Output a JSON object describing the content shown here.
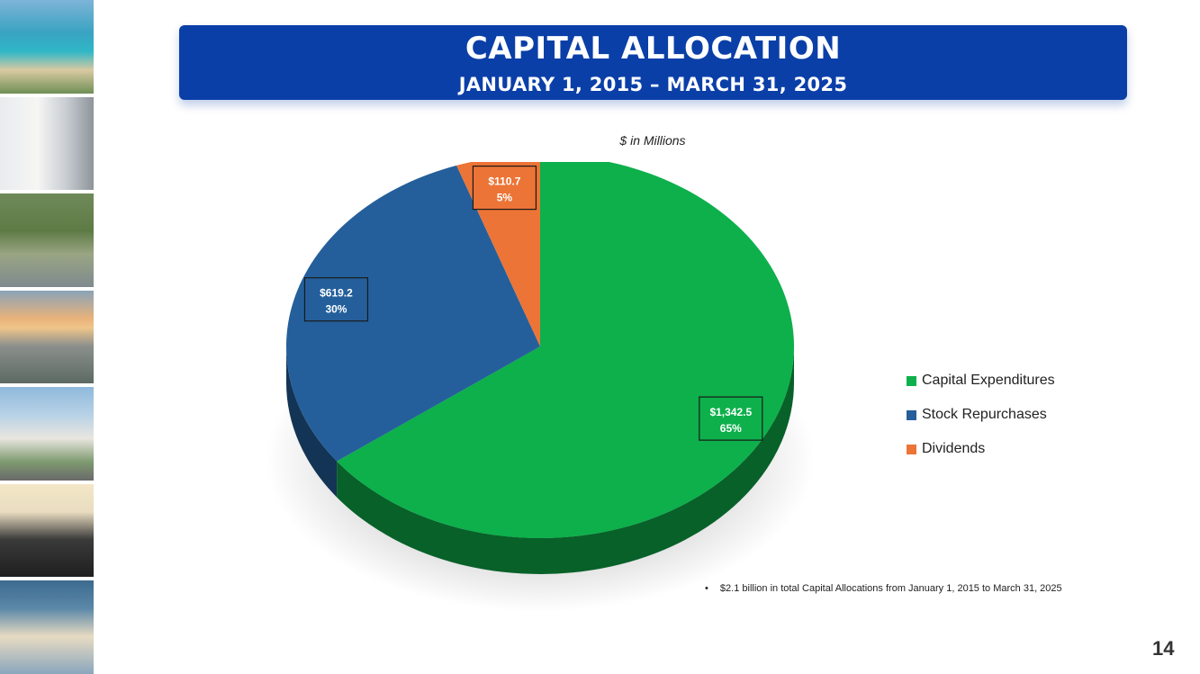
{
  "header": {
    "title": "CAPITAL ALLOCATION",
    "subtitle": "JANUARY 1, 2015 – MARCH 31, 2025"
  },
  "chart_data": {
    "type": "pie",
    "units_label": "$ in Millions",
    "slices": [
      {
        "name": "Capital Expenditures",
        "value": 1342.5,
        "value_label": "$1,342.5",
        "percent_label": "65%",
        "color": "#0db04b"
      },
      {
        "name": "Stock Repurchases",
        "value": 619.2,
        "value_label": "$619.2",
        "percent_label": "30%",
        "color": "#245f9b"
      },
      {
        "name": "Dividends",
        "value": 110.7,
        "value_label": "$110.7",
        "percent_label": "5%",
        "color": "#ec7436"
      }
    ],
    "legend_position": "right"
  },
  "footnote": {
    "bullet": "•",
    "text": "$2.1 billion in total Capital Allocations from January 1, 2015 to March 31, 2025"
  },
  "page_number": "14"
}
